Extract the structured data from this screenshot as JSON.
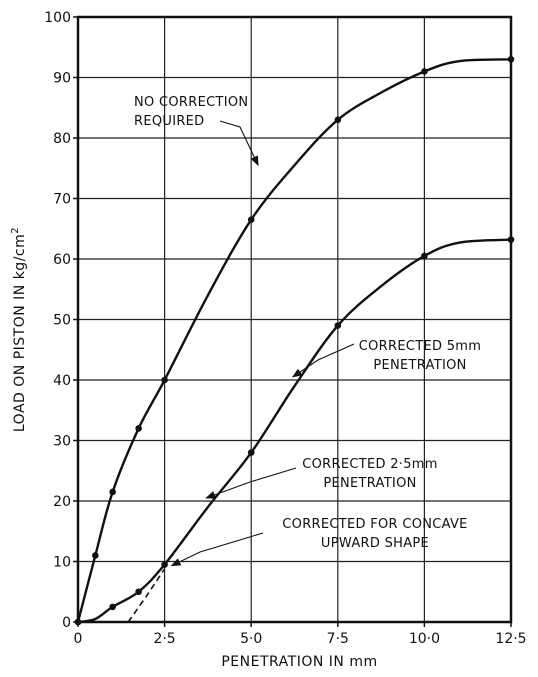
{
  "chart_data": {
    "type": "line",
    "title": "",
    "xlabel": "PENETRATION IN mm",
    "ylabel": "LOAD ON PISTON IN kg/cm",
    "ylabel_superscript": "2",
    "xlim": [
      0,
      12.5
    ],
    "ylim": [
      0,
      100
    ],
    "x_ticks": [
      0,
      2.5,
      5.0,
      7.5,
      10.0,
      12.5
    ],
    "x_tick_labels": [
      "0",
      "2·5",
      "5·0",
      "7·5",
      "10·0",
      "12·5"
    ],
    "y_ticks": [
      0,
      10,
      20,
      30,
      40,
      50,
      60,
      70,
      80,
      90,
      100
    ],
    "y_tick_labels": [
      "0",
      "10",
      "20",
      "30",
      "40",
      "50",
      "60",
      "70",
      "80",
      "90",
      "100"
    ],
    "grid": true,
    "series": [
      {
        "name": "",
        "style": "solid",
        "curve": [
          [
            0,
            0
          ],
          [
            0.5,
            11
          ],
          [
            1,
            21.5
          ],
          [
            1.75,
            32
          ],
          [
            2.5,
            40
          ],
          [
            3.75,
            54
          ],
          [
            5,
            66.5
          ],
          [
            6.25,
            75.5
          ],
          [
            7.5,
            83
          ],
          [
            8.75,
            87.5
          ],
          [
            10,
            91
          ],
          [
            11,
            92.7
          ],
          [
            12.5,
            93
          ]
        ],
        "points": [
          [
            0,
            0
          ],
          [
            0.5,
            11
          ],
          [
            1,
            21.5
          ],
          [
            1.75,
            32
          ],
          [
            2.5,
            40
          ],
          [
            5,
            66.5
          ],
          [
            7.5,
            83
          ],
          [
            10,
            91
          ],
          [
            12.5,
            93
          ]
        ]
      },
      {
        "name": "",
        "style": "solid",
        "curve": [
          [
            0,
            0
          ],
          [
            0.5,
            0.5
          ],
          [
            1,
            2.5
          ],
          [
            1.75,
            5
          ],
          [
            2.5,
            9.5
          ],
          [
            3.75,
            19
          ],
          [
            5,
            28
          ],
          [
            6.25,
            39
          ],
          [
            7.5,
            49
          ],
          [
            8.75,
            55.5
          ],
          [
            10,
            60.5
          ],
          [
            11,
            62.7
          ],
          [
            12.5,
            63.2
          ]
        ],
        "points": [
          [
            0,
            0
          ],
          [
            1,
            2.5
          ],
          [
            1.75,
            5
          ],
          [
            2.5,
            9.5
          ],
          [
            5,
            28
          ],
          [
            7.5,
            49
          ],
          [
            10,
            60.5
          ],
          [
            12.5,
            63.2
          ]
        ]
      },
      {
        "name": "",
        "style": "dashed",
        "curve": [
          [
            1.45,
            0
          ],
          [
            2.0,
            4.5
          ],
          [
            2.5,
            8.8
          ]
        ],
        "points": []
      }
    ],
    "annotations": [
      {
        "lines": [
          "NO CORRECTION",
          "REQUIRED"
        ],
        "arrow_to": [
          5.2,
          75.5
        ]
      },
      {
        "lines": [
          "CORRECTED 5mm",
          "PENETRATION"
        ],
        "arrow_to": [
          6.2,
          40.5
        ]
      },
      {
        "lines": [
          "CORRECTED 2·5mm",
          "PENETRATION"
        ],
        "arrow_to": [
          3.7,
          20.5
        ]
      },
      {
        "lines": [
          "CORRECTED FOR CONCAVE",
          "UPWARD SHAPE"
        ],
        "arrow_to": [
          2.7,
          9.3
        ]
      }
    ]
  }
}
